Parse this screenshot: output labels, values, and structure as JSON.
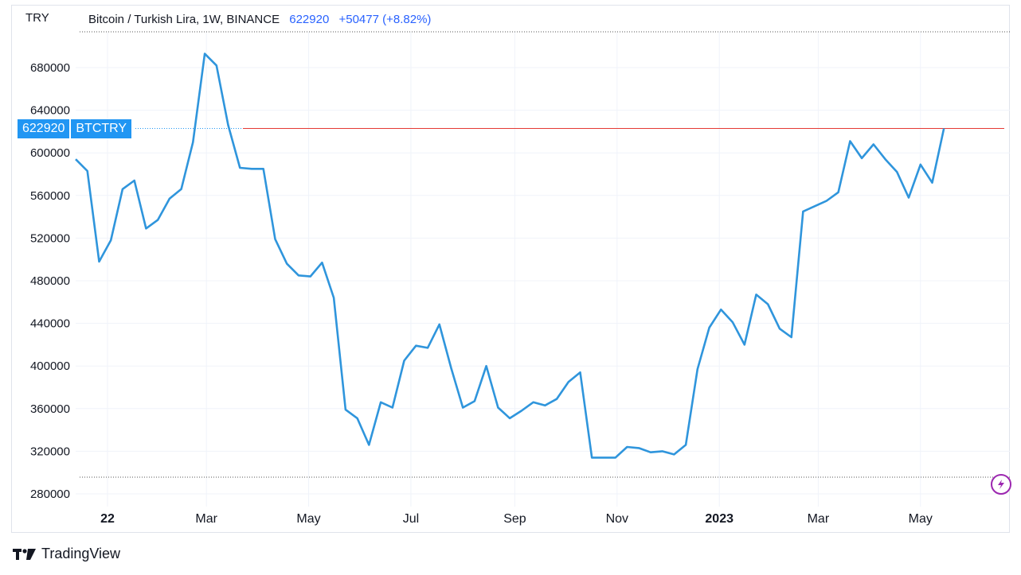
{
  "chart_data": {
    "type": "line",
    "title": "Bitcoin / Turkish Lira, 1W, BINANCE",
    "currency": "TRY",
    "symbol": "BTCTRY",
    "last_price": 622920,
    "last_price_label": "622920",
    "change_label": "+50477 (+8.82%)",
    "series_color": "#2f95dc",
    "price_line_color": "#e53935",
    "ylim": [
      270000,
      705000
    ],
    "y_ticks": [
      280000,
      320000,
      360000,
      400000,
      440000,
      480000,
      520000,
      560000,
      600000,
      640000,
      680000
    ],
    "x_ticks": [
      {
        "date": "2022-01-01",
        "label": "22",
        "bold": true
      },
      {
        "date": "2022-03-01",
        "label": "Mar",
        "bold": false
      },
      {
        "date": "2022-05-01",
        "label": "May",
        "bold": false
      },
      {
        "date": "2022-07-01",
        "label": "Jul",
        "bold": false
      },
      {
        "date": "2022-09-01",
        "label": "Sep",
        "bold": false
      },
      {
        "date": "2022-11-01",
        "label": "Nov",
        "bold": false
      },
      {
        "date": "2023-01-01",
        "label": "2023",
        "bold": true
      },
      {
        "date": "2023-03-01",
        "label": "Mar",
        "bold": false
      },
      {
        "date": "2023-05-01",
        "label": "May",
        "bold": false
      }
    ],
    "x_start": "2021-12-13",
    "x_end": "2023-06-20",
    "points": [
      [
        "2021-12-13",
        594000
      ],
      [
        "2021-12-20",
        583000
      ],
      [
        "2021-12-27",
        498000
      ],
      [
        "2022-01-03",
        518000
      ],
      [
        "2022-01-10",
        566000
      ],
      [
        "2022-01-17",
        574000
      ],
      [
        "2022-01-24",
        529000
      ],
      [
        "2022-01-31",
        537000
      ],
      [
        "2022-02-07",
        557000
      ],
      [
        "2022-02-14",
        566000
      ],
      [
        "2022-02-21",
        610000
      ],
      [
        "2022-02-28",
        693000
      ],
      [
        "2022-03-07",
        682000
      ],
      [
        "2022-03-14",
        626000
      ],
      [
        "2022-03-21",
        586000
      ],
      [
        "2022-03-28",
        585000
      ],
      [
        "2022-04-04",
        585000
      ],
      [
        "2022-04-11",
        519000
      ],
      [
        "2022-04-18",
        496000
      ],
      [
        "2022-04-25",
        485000
      ],
      [
        "2022-05-02",
        484000
      ],
      [
        "2022-05-09",
        497000
      ],
      [
        "2022-05-16",
        464000
      ],
      [
        "2022-05-23",
        359000
      ],
      [
        "2022-05-30",
        351000
      ],
      [
        "2022-06-06",
        326000
      ],
      [
        "2022-06-13",
        366000
      ],
      [
        "2022-06-20",
        361000
      ],
      [
        "2022-06-27",
        405000
      ],
      [
        "2022-07-04",
        419000
      ],
      [
        "2022-07-11",
        417000
      ],
      [
        "2022-07-18",
        439000
      ],
      [
        "2022-07-25",
        398000
      ],
      [
        "2022-08-01",
        361000
      ],
      [
        "2022-08-08",
        367000
      ],
      [
        "2022-08-15",
        400000
      ],
      [
        "2022-08-22",
        361000
      ],
      [
        "2022-08-29",
        351000
      ],
      [
        "2022-09-05",
        358000
      ],
      [
        "2022-09-12",
        366000
      ],
      [
        "2022-09-19",
        363000
      ],
      [
        "2022-09-26",
        369000
      ],
      [
        "2022-10-03",
        385000
      ],
      [
        "2022-10-10",
        394000
      ],
      [
        "2022-10-17",
        314000
      ],
      [
        "2022-10-24",
        314000
      ],
      [
        "2022-10-31",
        314000
      ],
      [
        "2022-11-07",
        324000
      ],
      [
        "2022-11-14",
        323000
      ],
      [
        "2022-11-21",
        319000
      ],
      [
        "2022-11-28",
        320000
      ],
      [
        "2022-12-05",
        317000
      ],
      [
        "2022-12-12",
        326000
      ],
      [
        "2022-12-19",
        397000
      ],
      [
        "2022-12-26",
        436000
      ],
      [
        "2023-01-02",
        453000
      ],
      [
        "2023-01-09",
        441000
      ],
      [
        "2023-01-16",
        420000
      ],
      [
        "2023-01-23",
        467000
      ],
      [
        "2023-01-30",
        458000
      ],
      [
        "2023-02-06",
        435000
      ],
      [
        "2023-02-13",
        427000
      ],
      [
        "2023-02-20",
        545000
      ],
      [
        "2023-02-27",
        550000
      ],
      [
        "2023-03-06",
        555000
      ],
      [
        "2023-03-13",
        563000
      ],
      [
        "2023-03-20",
        611000
      ],
      [
        "2023-03-27",
        595000
      ],
      [
        "2023-04-03",
        608000
      ],
      [
        "2023-04-10",
        594000
      ],
      [
        "2023-04-17",
        582000
      ],
      [
        "2023-04-24",
        558000
      ],
      [
        "2023-05-01",
        589000
      ],
      [
        "2023-05-08",
        572000
      ],
      [
        "2023-05-15",
        622920
      ]
    ],
    "grid": true
  },
  "brand": {
    "name": "TradingView"
  },
  "icons": {
    "logo": "tradingview-logo-icon",
    "bolt": "lightning-bolt-icon"
  }
}
